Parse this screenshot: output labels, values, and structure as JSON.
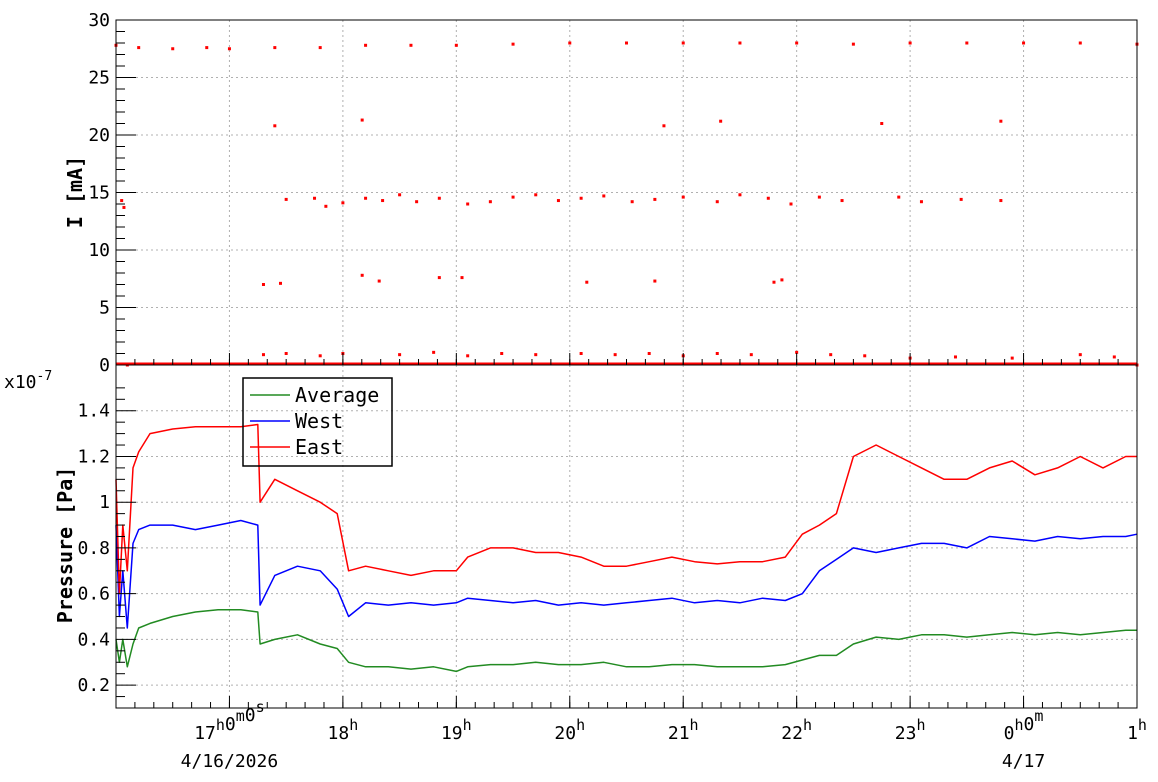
{
  "chart_data": [
    {
      "type": "scatter",
      "panel": "top",
      "ylabel": "I [mA]",
      "ylim": [
        0,
        30
      ],
      "yticks": [
        "0",
        "5",
        "10",
        "15",
        "20",
        "25",
        "30"
      ],
      "grid": true,
      "color": "#ff0000",
      "series": [
        {
          "points": [
            {
              "x": 16.0,
              "y": 27.8
            },
            {
              "x": 16.2,
              "y": 27.6
            },
            {
              "x": 16.5,
              "y": 27.5
            },
            {
              "x": 16.8,
              "y": 27.6
            },
            {
              "x": 17.0,
              "y": 27.5
            },
            {
              "x": 17.4,
              "y": 27.6
            },
            {
              "x": 17.8,
              "y": 27.6
            },
            {
              "x": 18.2,
              "y": 27.8
            },
            {
              "x": 18.6,
              "y": 27.8
            },
            {
              "x": 19.0,
              "y": 27.8
            },
            {
              "x": 19.5,
              "y": 27.9
            },
            {
              "x": 20.0,
              "y": 28.0
            },
            {
              "x": 20.5,
              "y": 28.0
            },
            {
              "x": 21.0,
              "y": 28.0
            },
            {
              "x": 21.5,
              "y": 28.0
            },
            {
              "x": 22.0,
              "y": 28.0
            },
            {
              "x": 22.5,
              "y": 27.9
            },
            {
              "x": 23.0,
              "y": 28.0
            },
            {
              "x": 23.5,
              "y": 28.0
            },
            {
              "x": 24.0,
              "y": 28.0
            },
            {
              "x": 24.5,
              "y": 28.0
            },
            {
              "x": 25.0,
              "y": 27.9
            },
            {
              "x": 17.4,
              "y": 20.8
            },
            {
              "x": 18.17,
              "y": 21.3
            },
            {
              "x": 20.83,
              "y": 20.8
            },
            {
              "x": 21.33,
              "y": 21.2
            },
            {
              "x": 22.75,
              "y": 21.0
            },
            {
              "x": 23.8,
              "y": 21.2
            },
            {
              "x": 16.05,
              "y": 14.3
            },
            {
              "x": 16.07,
              "y": 13.7
            },
            {
              "x": 17.5,
              "y": 14.4
            },
            {
              "x": 17.75,
              "y": 14.5
            },
            {
              "x": 17.85,
              "y": 13.8
            },
            {
              "x": 18.0,
              "y": 14.1
            },
            {
              "x": 18.2,
              "y": 14.5
            },
            {
              "x": 18.35,
              "y": 14.3
            },
            {
              "x": 18.5,
              "y": 14.8
            },
            {
              "x": 18.65,
              "y": 14.2
            },
            {
              "x": 18.85,
              "y": 14.5
            },
            {
              "x": 19.1,
              "y": 14.0
            },
            {
              "x": 19.3,
              "y": 14.2
            },
            {
              "x": 19.5,
              "y": 14.6
            },
            {
              "x": 19.7,
              "y": 14.8
            },
            {
              "x": 19.9,
              "y": 14.3
            },
            {
              "x": 20.1,
              "y": 14.5
            },
            {
              "x": 20.3,
              "y": 14.7
            },
            {
              "x": 20.55,
              "y": 14.2
            },
            {
              "x": 20.75,
              "y": 14.4
            },
            {
              "x": 21.0,
              "y": 14.6
            },
            {
              "x": 21.3,
              "y": 14.2
            },
            {
              "x": 21.5,
              "y": 14.8
            },
            {
              "x": 21.75,
              "y": 14.5
            },
            {
              "x": 21.95,
              "y": 14.0
            },
            {
              "x": 22.2,
              "y": 14.6
            },
            {
              "x": 22.4,
              "y": 14.3
            },
            {
              "x": 22.9,
              "y": 14.6
            },
            {
              "x": 23.1,
              "y": 14.2
            },
            {
              "x": 23.45,
              "y": 14.4
            },
            {
              "x": 23.8,
              "y": 14.3
            },
            {
              "x": 17.3,
              "y": 7.0
            },
            {
              "x": 17.45,
              "y": 7.1
            },
            {
              "x": 18.17,
              "y": 7.8
            },
            {
              "x": 18.32,
              "y": 7.3
            },
            {
              "x": 18.85,
              "y": 7.6
            },
            {
              "x": 19.05,
              "y": 7.6
            },
            {
              "x": 20.15,
              "y": 7.2
            },
            {
              "x": 20.75,
              "y": 7.3
            },
            {
              "x": 21.8,
              "y": 7.2
            },
            {
              "x": 21.87,
              "y": 7.4
            },
            {
              "x": 16.1,
              "y": 0.0
            },
            {
              "x": 17.3,
              "y": 0.9
            },
            {
              "x": 17.5,
              "y": 1.0
            },
            {
              "x": 17.8,
              "y": 0.8
            },
            {
              "x": 18.0,
              "y": 1.0
            },
            {
              "x": 18.5,
              "y": 0.9
            },
            {
              "x": 18.8,
              "y": 1.1
            },
            {
              "x": 19.1,
              "y": 0.8
            },
            {
              "x": 19.4,
              "y": 1.0
            },
            {
              "x": 19.7,
              "y": 0.9
            },
            {
              "x": 20.1,
              "y": 1.0
            },
            {
              "x": 20.4,
              "y": 0.9
            },
            {
              "x": 20.7,
              "y": 1.0
            },
            {
              "x": 21.0,
              "y": 0.8
            },
            {
              "x": 21.3,
              "y": 1.0
            },
            {
              "x": 21.6,
              "y": 0.9
            },
            {
              "x": 22.0,
              "y": 1.1
            },
            {
              "x": 22.3,
              "y": 0.9
            },
            {
              "x": 22.6,
              "y": 0.8
            },
            {
              "x": 23.0,
              "y": 0.6
            },
            {
              "x": 23.4,
              "y": 0.7
            },
            {
              "x": 23.9,
              "y": 0.6
            },
            {
              "x": 24.5,
              "y": 0.9
            },
            {
              "x": 24.8,
              "y": 0.7
            },
            {
              "x": 25.0,
              "y": 0.0
            }
          ]
        }
      ]
    },
    {
      "type": "line",
      "panel": "bottom",
      "ylabel": "Pressure [Pa]",
      "exponent_label": "x10",
      "exponent_sup": "-7",
      "ylim": [
        0.1,
        1.6
      ],
      "yticks": [
        "0.2",
        "0.4",
        "0.6",
        "0.8",
        "1",
        "1.2",
        "1.4"
      ],
      "grid": true,
      "legend_position": "top-left",
      "x": [
        16.0,
        16.03,
        16.06,
        16.1,
        16.15,
        16.2,
        16.3,
        16.5,
        16.7,
        16.9,
        17.1,
        17.25,
        17.27,
        17.4,
        17.6,
        17.8,
        17.95,
        18.05,
        18.2,
        18.4,
        18.6,
        18.8,
        19.0,
        19.1,
        19.3,
        19.5,
        19.7,
        19.9,
        20.1,
        20.3,
        20.5,
        20.7,
        20.9,
        21.1,
        21.3,
        21.5,
        21.7,
        21.9,
        22.05,
        22.2,
        22.35,
        22.5,
        22.7,
        22.9,
        23.1,
        23.3,
        23.5,
        23.7,
        23.9,
        24.1,
        24.3,
        24.5,
        24.7,
        24.9,
        25.0
      ],
      "series": [
        {
          "name": "Average",
          "color": "#228b22",
          "values": [
            0.4,
            0.3,
            0.4,
            0.28,
            0.38,
            0.45,
            0.47,
            0.5,
            0.52,
            0.53,
            0.53,
            0.52,
            0.38,
            0.4,
            0.42,
            0.38,
            0.36,
            0.3,
            0.28,
            0.28,
            0.27,
            0.28,
            0.26,
            0.28,
            0.29,
            0.29,
            0.3,
            0.29,
            0.29,
            0.3,
            0.28,
            0.28,
            0.29,
            0.29,
            0.28,
            0.28,
            0.28,
            0.29,
            0.31,
            0.33,
            0.33,
            0.38,
            0.41,
            0.4,
            0.42,
            0.42,
            0.41,
            0.42,
            0.43,
            0.42,
            0.43,
            0.42,
            0.43,
            0.44,
            0.44
          ]
        },
        {
          "name": "West",
          "color": "#0000ff",
          "values": [
            0.9,
            0.5,
            0.7,
            0.45,
            0.82,
            0.88,
            0.9,
            0.9,
            0.88,
            0.9,
            0.92,
            0.9,
            0.55,
            0.68,
            0.72,
            0.7,
            0.62,
            0.5,
            0.56,
            0.55,
            0.56,
            0.55,
            0.56,
            0.58,
            0.57,
            0.56,
            0.57,
            0.55,
            0.56,
            0.55,
            0.56,
            0.57,
            0.58,
            0.56,
            0.57,
            0.56,
            0.58,
            0.57,
            0.6,
            0.7,
            0.75,
            0.8,
            0.78,
            0.8,
            0.82,
            0.82,
            0.8,
            0.85,
            0.84,
            0.83,
            0.85,
            0.84,
            0.85,
            0.85,
            0.86
          ]
        },
        {
          "name": "East",
          "color": "#ff0000",
          "values": [
            1.1,
            0.6,
            0.9,
            0.7,
            1.15,
            1.22,
            1.3,
            1.32,
            1.33,
            1.33,
            1.33,
            1.34,
            1.0,
            1.1,
            1.05,
            1.0,
            0.95,
            0.7,
            0.72,
            0.7,
            0.68,
            0.7,
            0.7,
            0.76,
            0.8,
            0.8,
            0.78,
            0.78,
            0.76,
            0.72,
            0.72,
            0.74,
            0.76,
            0.74,
            0.73,
            0.74,
            0.74,
            0.76,
            0.86,
            0.9,
            0.95,
            1.2,
            1.25,
            1.2,
            1.15,
            1.1,
            1.1,
            1.15,
            1.18,
            1.12,
            1.15,
            1.2,
            1.15,
            1.2,
            1.2
          ]
        }
      ]
    }
  ],
  "x_axis": {
    "ticks": [
      {
        "value": 17,
        "label": "17",
        "sup": "h",
        "label2": "0",
        "sup2": "m",
        "label3": "0",
        "sup3": "s"
      },
      {
        "value": 18,
        "label": "18",
        "sup": "h"
      },
      {
        "value": 19,
        "label": "19",
        "sup": "h"
      },
      {
        "value": 20,
        "label": "20",
        "sup": "h"
      },
      {
        "value": 21,
        "label": "21",
        "sup": "h"
      },
      {
        "value": 22,
        "label": "22",
        "sup": "h"
      },
      {
        "value": 23,
        "label": "23",
        "sup": "h"
      },
      {
        "value": 24,
        "label": "0",
        "sup": "h",
        "label2": "0",
        "sup2": "m"
      },
      {
        "value": 25,
        "label": "1",
        "sup": "h"
      }
    ],
    "date_labels": [
      {
        "value": 17,
        "label": "4/16/2026"
      },
      {
        "value": 24,
        "label": "4/17"
      }
    ],
    "range": [
      16.0,
      25.0
    ]
  }
}
